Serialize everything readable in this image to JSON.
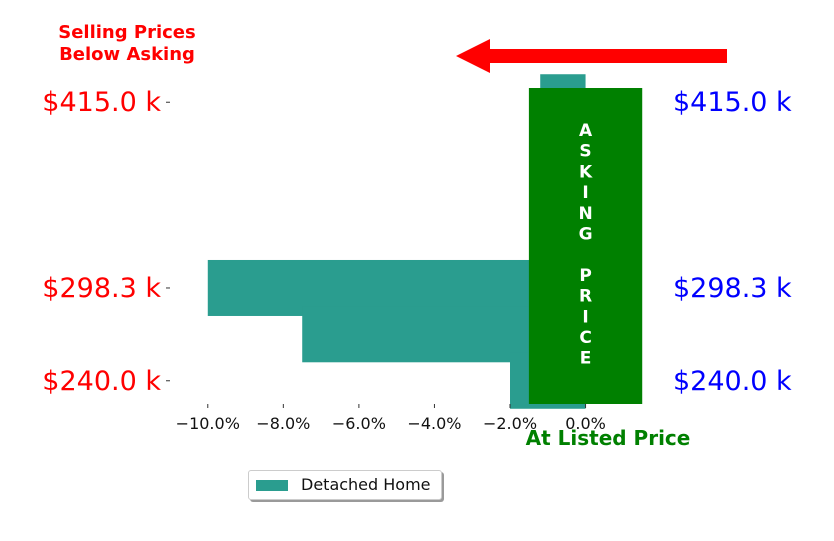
{
  "chart_data": {
    "type": "bar",
    "orientation": "horizontal",
    "title": "",
    "annotations": {
      "below_asking": [
        "Selling Prices",
        "Below Asking"
      ],
      "at_listed": "At Listed Price",
      "asking_price": [
        "A",
        "S",
        "K",
        "I",
        "N",
        "G",
        "",
        "P",
        "R",
        "I",
        "C",
        "E"
      ]
    },
    "series": [
      {
        "name": "Detached Home",
        "color": "#2a9d8f",
        "y": [
          415.0,
          385.8,
          298.3,
          269.2,
          240.0
        ],
        "values": [
          -1.2,
          0.0,
          -10.0,
          -7.5,
          -2.0
        ]
      }
    ],
    "xlim": [
      -11.0,
      1.6
    ],
    "ylim": [
      225.4,
      429.6
    ],
    "x_ticks": [
      {
        "value": -10,
        "label": "−10.0%"
      },
      {
        "value": -8,
        "label": "−8.0%"
      },
      {
        "value": -6,
        "label": "−6.0%"
      },
      {
        "value": -4,
        "label": "−4.0%"
      },
      {
        "value": -2,
        "label": "−2.0%"
      },
      {
        "value": 0,
        "label": "0.0%"
      }
    ],
    "y_ticks": [
      {
        "value": 415.0,
        "label": "$415.0 k"
      },
      {
        "value": 298.3,
        "label": "$298.3 k"
      },
      {
        "value": 240.0,
        "label": "$240.0 k"
      }
    ],
    "asking_band": [
      -1.5,
      1.5
    ],
    "legend": {
      "position": "bottom-center"
    },
    "colors": {
      "bar": "#2a9d8f",
      "asking": "#008000",
      "left_labels": "#ff0000",
      "right_labels": "#0000ff",
      "arrow": "#ff0000"
    }
  }
}
